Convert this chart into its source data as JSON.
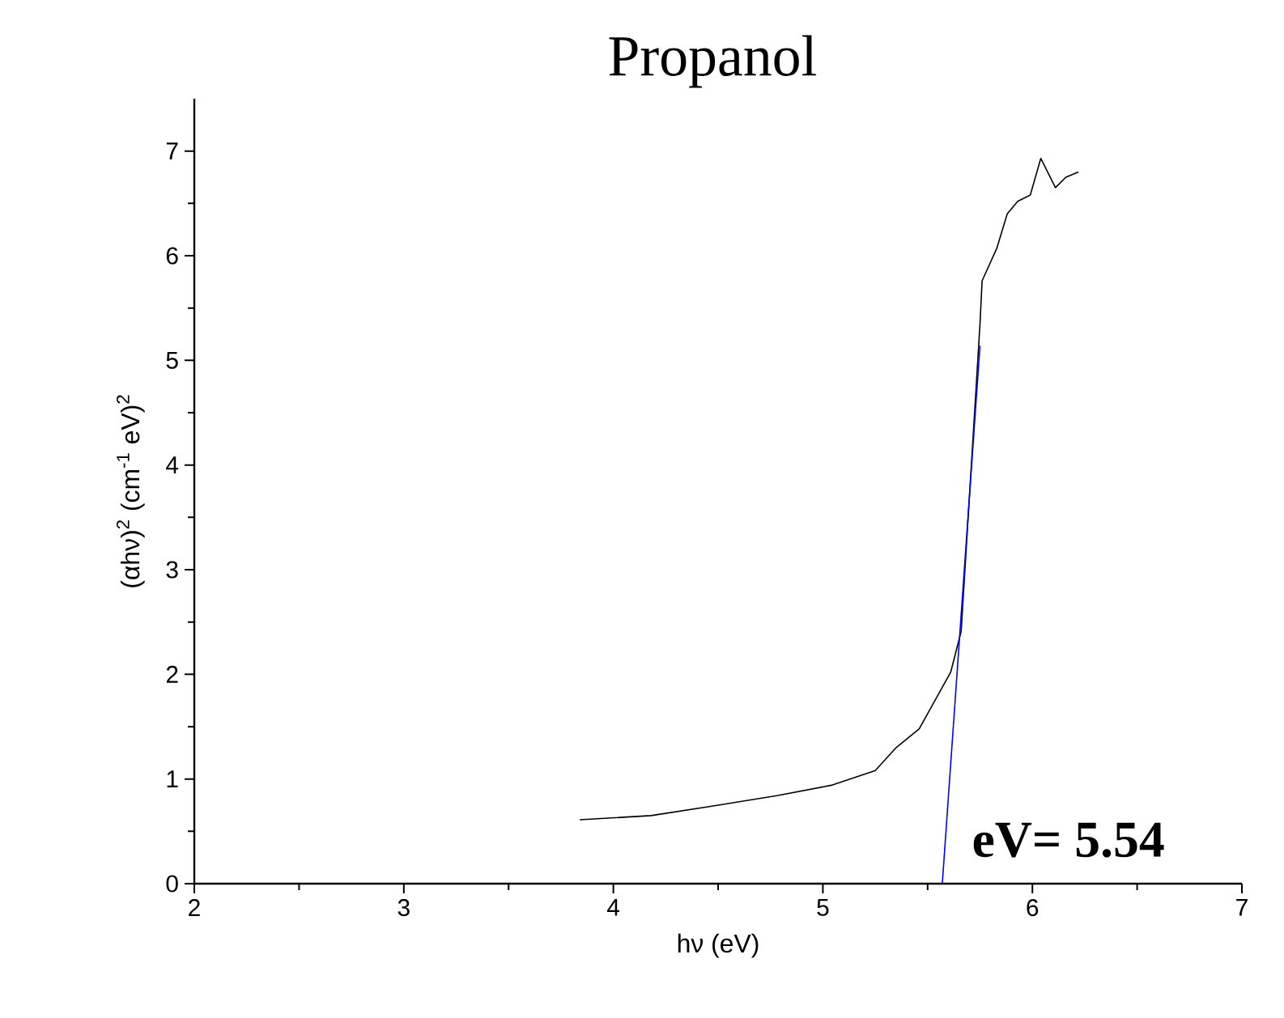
{
  "chart_data": {
    "type": "line",
    "title": "Propanol",
    "xlabel": "hν (eV)",
    "ylabel": "(αhν)$^{2}$ (cm$^{-1}$ eV)$^{2}$",
    "xlim": [
      2,
      7
    ],
    "ylim": [
      0,
      7.5
    ],
    "xticks": [
      2,
      3,
      4,
      5,
      6,
      7
    ],
    "yticks": [
      0,
      1,
      2,
      3,
      4,
      5,
      6,
      7
    ],
    "series": [
      {
        "color": "#000000",
        "x": [
          3.84,
          4.18,
          4.47,
          4.78,
          5.04,
          5.25,
          5.35,
          5.46,
          5.61,
          5.66,
          5.75,
          5.76,
          5.83,
          5.88,
          5.93,
          5.99,
          6.04,
          6.11,
          6.16,
          6.22
        ],
        "values": [
          0.61,
          0.65,
          0.74,
          0.84,
          0.94,
          1.08,
          1.3,
          1.48,
          2.02,
          2.41,
          5.35,
          5.76,
          6.07,
          6.4,
          6.52,
          6.58,
          6.93,
          6.65,
          6.75,
          6.8
        ]
      },
      {
        "type": "line",
        "color": "#0000ff",
        "x": [
          5.75,
          5.57
        ],
        "values": [
          5.14,
          0
        ]
      }
    ],
    "annotations": [
      {
        "text": "eV= 5.54",
        "x": 5.54,
        "y": 0
      }
    ]
  }
}
